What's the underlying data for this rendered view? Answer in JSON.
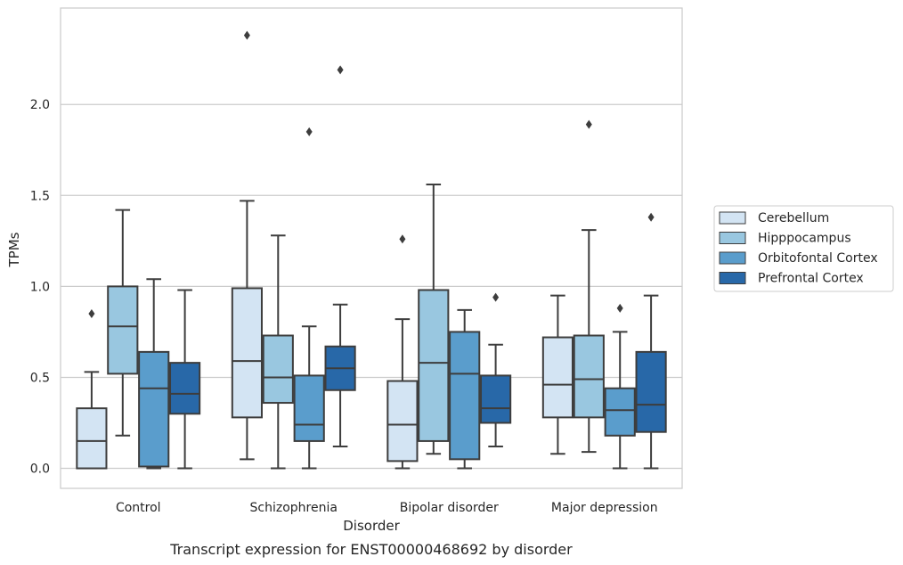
{
  "caption": "Transcript expression for ENST00000468692 by disorder",
  "chart_data": {
    "type": "box",
    "xlabel": "Disorder",
    "ylabel": "TPMs",
    "ylim": [
      -0.11,
      2.53
    ],
    "yticks": [
      "0.0",
      "0.5",
      "1.0",
      "1.5",
      "2.0"
    ],
    "grid": "horizontal",
    "legend_position": "right",
    "categories": [
      "Control",
      "Schizophrenia",
      "Bipolar disorder",
      "Major depression"
    ],
    "series": [
      {
        "name": "Cerebellum",
        "color": "#d3e4f3",
        "boxes": [
          {
            "whisker_low": 0.0,
            "q1": 0.0,
            "median": 0.15,
            "q3": 0.33,
            "whisker_high": 0.53,
            "outliers": [
              0.85
            ]
          },
          {
            "whisker_low": 0.05,
            "q1": 0.28,
            "median": 0.59,
            "q3": 0.99,
            "whisker_high": 1.47,
            "outliers": [
              2.38
            ]
          },
          {
            "whisker_low": 0.0,
            "q1": 0.04,
            "median": 0.24,
            "q3": 0.48,
            "whisker_high": 0.82,
            "outliers": [
              1.26
            ]
          },
          {
            "whisker_low": 0.08,
            "q1": 0.28,
            "median": 0.46,
            "q3": 0.72,
            "whisker_high": 0.95,
            "outliers": []
          }
        ]
      },
      {
        "name": "Hipppocampus",
        "color": "#99c7e0",
        "boxes": [
          {
            "whisker_low": 0.18,
            "q1": 0.52,
            "median": 0.78,
            "q3": 1.0,
            "whisker_high": 1.42,
            "outliers": []
          },
          {
            "whisker_low": 0.0,
            "q1": 0.36,
            "median": 0.5,
            "q3": 0.73,
            "whisker_high": 1.28,
            "outliers": []
          },
          {
            "whisker_low": 0.08,
            "q1": 0.15,
            "median": 0.58,
            "q3": 0.98,
            "whisker_high": 1.56,
            "outliers": []
          },
          {
            "whisker_low": 0.09,
            "q1": 0.28,
            "median": 0.49,
            "q3": 0.73,
            "whisker_high": 1.31,
            "outliers": [
              1.89
            ]
          }
        ]
      },
      {
        "name": "Orbitofontal Cortex",
        "color": "#5a9dcc",
        "boxes": [
          {
            "whisker_low": 0.0,
            "q1": 0.01,
            "median": 0.44,
            "q3": 0.64,
            "whisker_high": 1.04,
            "outliers": []
          },
          {
            "whisker_low": 0.0,
            "q1": 0.15,
            "median": 0.24,
            "q3": 0.51,
            "whisker_high": 0.78,
            "outliers": [
              1.85
            ]
          },
          {
            "whisker_low": 0.0,
            "q1": 0.05,
            "median": 0.52,
            "q3": 0.75,
            "whisker_high": 0.87,
            "outliers": []
          },
          {
            "whisker_low": 0.0,
            "q1": 0.18,
            "median": 0.32,
            "q3": 0.44,
            "whisker_high": 0.75,
            "outliers": [
              0.88
            ]
          }
        ]
      },
      {
        "name": "Prefrontal Cortex",
        "color": "#2868a8",
        "boxes": [
          {
            "whisker_low": 0.0,
            "q1": 0.3,
            "median": 0.41,
            "q3": 0.58,
            "whisker_high": 0.98,
            "outliers": []
          },
          {
            "whisker_low": 0.12,
            "q1": 0.43,
            "median": 0.55,
            "q3": 0.67,
            "whisker_high": 0.9,
            "outliers": [
              2.19
            ]
          },
          {
            "whisker_low": 0.12,
            "q1": 0.25,
            "median": 0.33,
            "q3": 0.51,
            "whisker_high": 0.68,
            "outliers": [
              0.94
            ]
          },
          {
            "whisker_low": 0.0,
            "q1": 0.2,
            "median": 0.35,
            "q3": 0.64,
            "whisker_high": 0.95,
            "outliers": [
              1.38
            ]
          }
        ]
      }
    ]
  }
}
